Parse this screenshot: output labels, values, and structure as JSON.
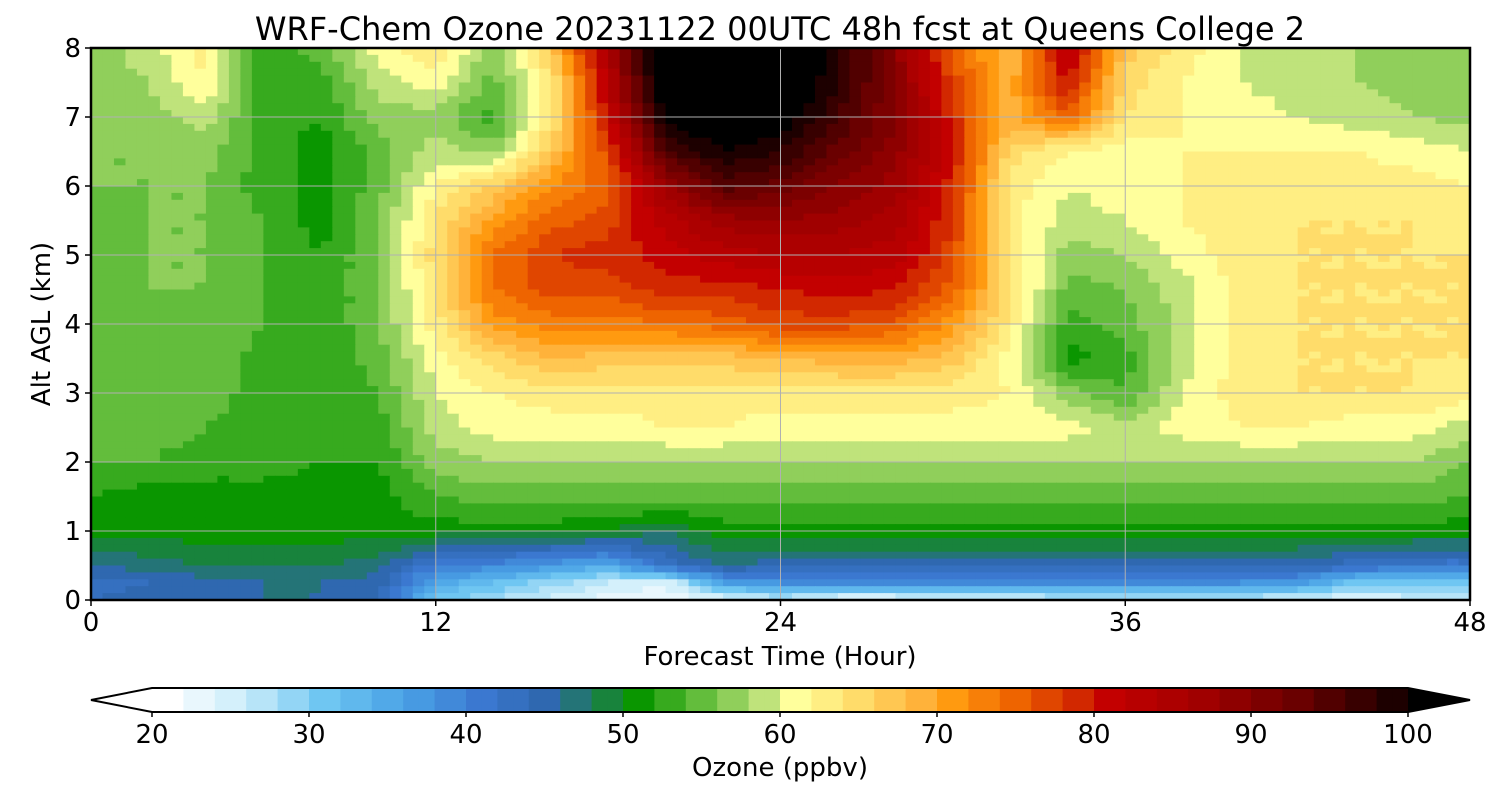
{
  "chart_data": {
    "type": "heatmap",
    "title": "WRF-Chem Ozone  20231122 00UTC 48h fcst at Queens College 2",
    "xlabel": "Forecast Time (Hour)",
    "ylabel": "Alt AGL (km)",
    "xlim": [
      0,
      48
    ],
    "ylim": [
      0,
      8
    ],
    "xticks": [
      "0",
      "12",
      "24",
      "36",
      "48"
    ],
    "yticks": [
      "0",
      "1",
      "2",
      "3",
      "4",
      "5",
      "6",
      "7",
      "8"
    ],
    "grid": true,
    "x": [
      0,
      2,
      4,
      6,
      8,
      10,
      12,
      14,
      16,
      18,
      20,
      22,
      24,
      26,
      28,
      30,
      32,
      34,
      36,
      38,
      40,
      42,
      44,
      46,
      48
    ],
    "y": [
      0,
      0.25,
      0.5,
      1,
      1.5,
      2,
      2.5,
      3,
      3.5,
      4,
      4.5,
      5,
      5.5,
      6,
      6.5,
      7,
      7.5,
      8
    ],
    "z": [
      [
        43,
        44,
        45,
        45,
        45,
        44,
        30,
        27,
        24,
        22,
        21,
        22,
        25,
        22,
        22,
        23,
        24,
        25,
        25,
        25,
        25,
        24,
        23,
        24,
        25
      ],
      [
        42,
        43,
        44,
        45,
        45,
        44,
        34,
        31,
        28,
        25,
        23,
        36,
        37,
        37,
        37,
        37,
        37,
        37,
        37,
        37,
        37,
        36,
        30,
        30,
        31
      ],
      [
        45,
        46,
        47,
        47,
        47,
        46,
        40,
        38,
        36,
        34,
        42,
        45,
        44,
        44,
        44,
        44,
        44,
        44,
        44,
        44,
        44,
        44,
        42,
        40,
        40
      ],
      [
        50,
        50,
        50,
        50,
        50,
        50,
        50,
        50,
        50,
        49,
        47,
        50,
        50,
        50,
        50,
        50,
        50,
        50,
        50,
        50,
        50,
        50,
        50,
        50,
        50
      ],
      [
        51,
        50,
        50,
        50,
        50,
        50,
        53,
        54,
        54,
        54,
        54,
        54,
        54,
        54,
        54,
        54,
        54,
        54,
        54,
        54,
        54,
        54,
        54,
        54,
        53
      ],
      [
        53,
        53,
        52,
        52,
        51,
        51,
        56,
        57,
        57,
        57,
        57,
        57,
        57,
        57,
        57,
        57,
        57,
        57,
        57,
        57,
        57,
        57,
        57,
        57,
        55
      ],
      [
        54,
        54,
        53,
        52,
        51,
        52,
        58,
        60,
        60,
        60,
        61,
        61,
        60,
        60,
        60,
        60,
        60,
        60,
        58,
        60,
        61,
        61,
        60,
        60,
        58
      ],
      [
        53,
        54,
        54,
        52,
        51,
        53,
        59,
        61,
        62,
        62,
        62,
        62,
        62,
        62,
        62,
        62,
        61,
        56,
        53,
        59,
        62,
        63,
        63,
        63,
        62
      ],
      [
        53,
        54,
        55,
        52,
        51,
        54,
        60,
        64,
        67,
        66,
        66,
        66,
        67,
        68,
        68,
        66,
        60,
        50,
        52,
        58,
        62,
        63,
        63,
        63,
        63
      ],
      [
        53,
        54,
        55,
        53,
        51,
        55,
        62,
        70,
        72,
        72,
        73,
        74,
        76,
        76,
        75,
        70,
        62,
        52,
        54,
        58,
        62,
        63,
        63,
        63,
        63
      ],
      [
        54,
        55,
        55,
        53,
        51,
        55,
        63,
        73,
        76,
        76,
        78,
        78,
        79,
        80,
        79,
        74,
        64,
        54,
        55,
        58,
        62,
        63,
        63,
        63,
        63
      ],
      [
        54,
        55,
        55,
        53,
        51,
        55,
        64,
        73,
        77,
        78,
        80,
        82,
        83,
        83,
        82,
        76,
        63,
        56,
        57,
        60,
        62,
        63,
        63,
        63,
        63
      ],
      [
        54,
        55,
        55,
        53,
        50,
        55,
        63,
        70,
        74,
        76,
        82,
        86,
        87,
        86,
        84,
        77,
        62,
        58,
        59,
        61,
        62,
        63,
        63,
        63,
        62
      ],
      [
        55,
        55,
        55,
        52,
        50,
        54,
        61,
        65,
        71,
        74,
        86,
        94,
        92,
        89,
        86,
        78,
        62,
        59,
        60,
        61,
        62,
        62,
        62,
        62,
        61
      ],
      [
        55,
        55,
        56,
        52,
        50,
        54,
        58,
        56,
        66,
        76,
        95,
        99,
        97,
        92,
        88,
        79,
        64,
        61,
        60,
        61,
        61,
        61,
        61,
        60,
        59
      ],
      [
        56,
        56,
        58,
        52,
        51,
        56,
        56,
        52,
        62,
        80,
        100,
        102,
        101,
        95,
        89,
        78,
        68,
        74,
        63,
        61,
        60,
        59,
        58,
        57,
        56
      ],
      [
        56,
        57,
        61,
        52,
        52,
        58,
        60,
        54,
        62,
        82,
        103,
        104,
        103,
        97,
        89,
        76,
        68,
        80,
        64,
        61,
        59,
        58,
        57,
        56,
        55
      ],
      [
        56,
        58,
        62,
        52,
        54,
        60,
        63,
        56,
        66,
        85,
        104,
        106,
        104,
        98,
        88,
        74,
        67,
        82,
        66,
        62,
        59,
        58,
        57,
        56,
        55
      ]
    ],
    "colorbar": {
      "label": "Ozone  (ppbv)",
      "min": 20,
      "max": 100,
      "ticks": [
        "20",
        "30",
        "40",
        "50",
        "60",
        "70",
        "80",
        "90",
        "100"
      ],
      "extend": "both",
      "stops": [
        {
          "v": 20,
          "c": "#ffffff"
        },
        {
          "v": 25,
          "c": "#c9ecfa"
        },
        {
          "v": 30,
          "c": "#6fc6f2"
        },
        {
          "v": 35,
          "c": "#4aa2e6"
        },
        {
          "v": 40,
          "c": "#3b78d0"
        },
        {
          "v": 44,
          "c": "#2f68b0"
        },
        {
          "v": 47,
          "c": "#1f7a5a"
        },
        {
          "v": 50,
          "c": "#0a9600"
        },
        {
          "v": 54,
          "c": "#63bd3c"
        },
        {
          "v": 57,
          "c": "#a6d86a"
        },
        {
          "v": 59,
          "c": "#d8ee8c"
        },
        {
          "v": 60,
          "c": "#ffff9c"
        },
        {
          "v": 64,
          "c": "#ffdc6a"
        },
        {
          "v": 68,
          "c": "#ffb23a"
        },
        {
          "v": 70,
          "c": "#ff9a10"
        },
        {
          "v": 74,
          "c": "#ee6400"
        },
        {
          "v": 78,
          "c": "#d22800"
        },
        {
          "v": 80,
          "c": "#c30000"
        },
        {
          "v": 86,
          "c": "#a00000"
        },
        {
          "v": 92,
          "c": "#6a0000"
        },
        {
          "v": 97,
          "c": "#2c0000"
        },
        {
          "v": 100,
          "c": "#000000"
        }
      ]
    }
  }
}
